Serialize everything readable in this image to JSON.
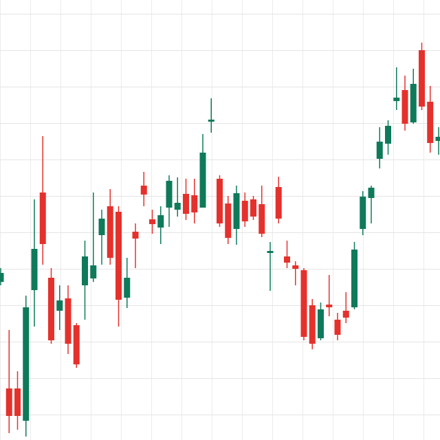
{
  "chart_data": {
    "type": "candlestick",
    "open": [
      230,
      75,
      75,
      28,
      218,
      360,
      236,
      188,
      206,
      167,
      225,
      235,
      298,
      340,
      332,
      207,
      303,
      370,
      321,
      309,
      338,
      335,
      358,
      356,
      338,
      463,
      380,
      344,
      307,
      348,
      350,
      343,
      272,
      368,
      267,
      254,
      247,
      196,
      148,
      197,
      175,
      188,
      193,
      307,
      352,
      409,
      431,
      493,
      509,
      462,
      567,
      492,
      435
    ],
    "high": [
      250,
      160,
      100,
      210,
      350,
      442,
      250,
      225,
      225,
      170,
      290,
      360,
      335,
      365,
      340,
      265,
      315,
      390,
      335,
      340,
      385,
      382,
      380,
      380,
      445,
      497,
      385,
      355,
      370,
      360,
      355,
      370,
      288,
      383,
      290,
      260,
      250,
      205,
      200,
      240,
      185,
      215,
      288,
      362,
      370,
      455,
      465,
      542,
      530,
      540,
      578,
      515,
      455
    ],
    "low": [
      225,
      10,
      15,
      5,
      165,
      255,
      140,
      160,
      125,
      105,
      175,
      230,
      255,
      255,
      165,
      192,
      250,
      340,
      300,
      285,
      310,
      325,
      320,
      315,
      338,
      447,
      310,
      285,
      284,
      310,
      320,
      295,
      217,
      315,
      250,
      225,
      145,
      132,
      145,
      180,
      145,
      170,
      190,
      298,
      315,
      395,
      415,
      480,
      450,
      460,
      480,
      418,
      415
    ],
    "close": [
      243,
      35,
      35,
      193,
      278,
      285,
      145,
      203,
      140,
      110,
      267,
      254,
      322,
      265,
      204,
      236,
      293,
      357,
      314,
      327,
      377,
      345,
      329,
      331,
      418,
      466,
      315,
      294,
      359,
      318,
      325,
      300,
      275,
      322,
      258,
      249,
      150,
      140,
      190,
      193,
      153,
      178,
      277,
      354,
      367,
      434,
      457,
      498,
      460,
      518,
      485,
      432,
      441
    ],
    "up_color": "#0e7a5a",
    "down_color": "#e5312c",
    "ylim": [
      0,
      640
    ],
    "grid": true
  }
}
